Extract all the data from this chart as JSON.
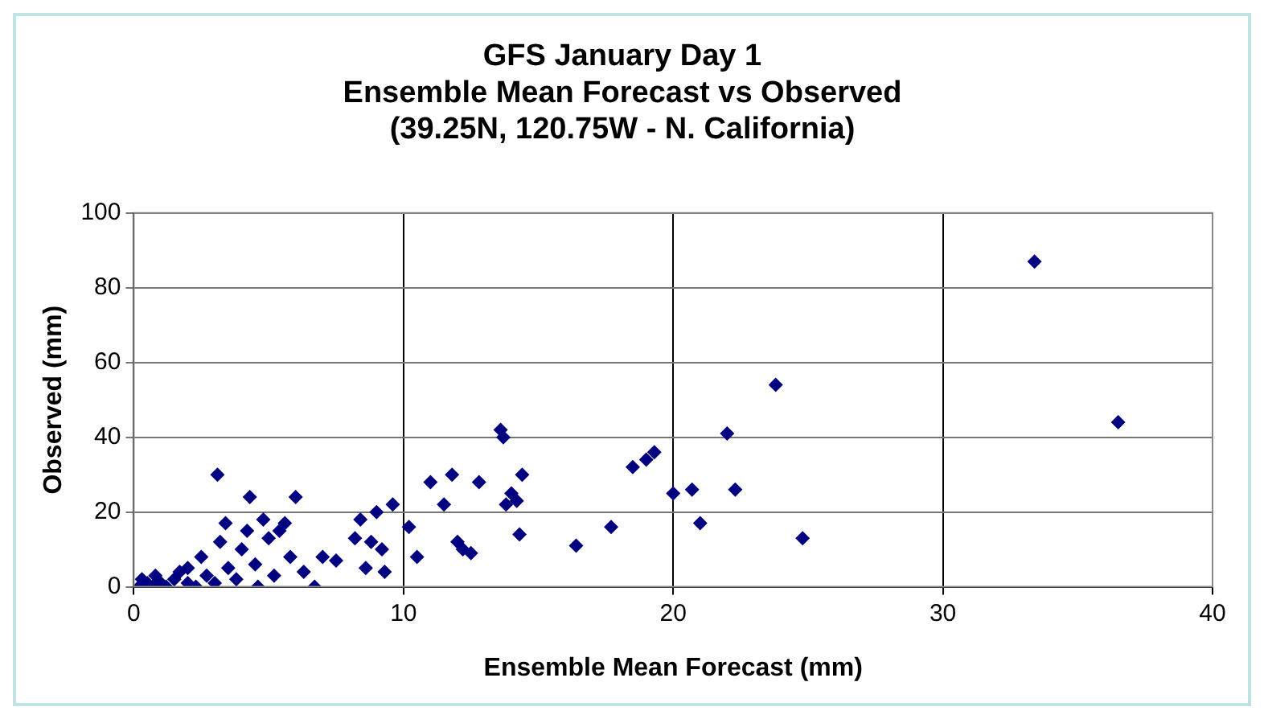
{
  "chart_data": {
    "type": "scatter",
    "title": "GFS January Day 1\nEnsemble Mean Forecast vs Observed\n(39.25N, 120.75W - N. California)",
    "xlabel": "Ensemble Mean Forecast (mm)",
    "ylabel": "Observed (mm)",
    "x": [
      0.2,
      0.3,
      0.5,
      0.7,
      0.8,
      1,
      1.2,
      1.5,
      1.7,
      2,
      2,
      2.3,
      2.5,
      2.7,
      3,
      3.1,
      3.2,
      3.4,
      3.5,
      3.8,
      4,
      4.2,
      4.3,
      4.5,
      4.6,
      4.8,
      5,
      5.2,
      5.4,
      5.6,
      6,
      5.8,
      6.3,
      6.7,
      7,
      7.5,
      8.2,
      8.4,
      8.6,
      8.8,
      9,
      9.2,
      9.3,
      9.6,
      10.2,
      10.5,
      11,
      11.5,
      11.8,
      12,
      12.2,
      12.5,
      12.8,
      13.6,
      13.7,
      14,
      13.8,
      14.2,
      14.4,
      14.3,
      16.4,
      17.7,
      18.5,
      19,
      19.3,
      20,
      20.7,
      21,
      22,
      22.3,
      23.8,
      24.8,
      33.4,
      36.5
    ],
    "series": [
      {
        "color": "#000080",
        "values": [
          0,
          2,
          1,
          0,
          3,
          1,
          0,
          2,
          4,
          1,
          5,
          0,
          8,
          3,
          1,
          30,
          12,
          17,
          5,
          2,
          10,
          15,
          24,
          6,
          0,
          18,
          13,
          3,
          15,
          17,
          24,
          8,
          4,
          0,
          8,
          7,
          13,
          18,
          5,
          12,
          20,
          10,
          4,
          22,
          16,
          8,
          28,
          22,
          30,
          12,
          10,
          9,
          28,
          42,
          40,
          25,
          22,
          23,
          30,
          14,
          11,
          16,
          32,
          34,
          36,
          25,
          26,
          17,
          41,
          26,
          54,
          13,
          87,
          44
        ]
      }
    ],
    "xlim": [
      0,
      40
    ],
    "xticks": [
      0,
      10,
      20,
      30,
      40
    ],
    "ylim": [
      0,
      100
    ],
    "yticks": [
      0,
      20,
      40,
      60,
      80,
      100
    ],
    "grid": true,
    "legend": false,
    "marker": "diamond"
  }
}
